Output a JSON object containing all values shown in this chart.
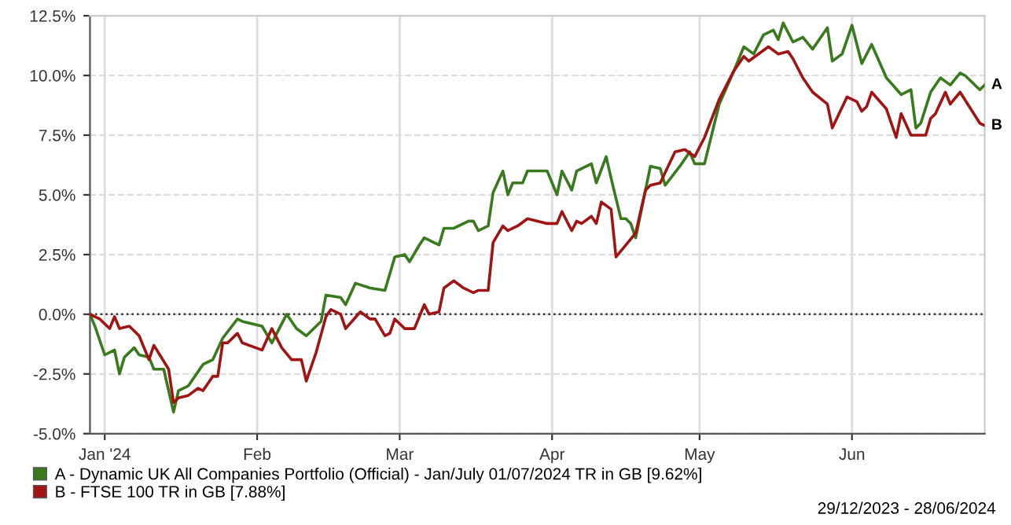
{
  "chart_data": {
    "type": "line",
    "xlim": [
      "2023-12-29",
      "2024-06-28"
    ],
    "xticks": [
      {
        "value": "2024-01-01",
        "label": "Jan '24"
      },
      {
        "value": "2024-02-01",
        "label": "Feb"
      },
      {
        "value": "2024-03-01",
        "label": "Mar"
      },
      {
        "value": "2024-04-01",
        "label": "Apr"
      },
      {
        "value": "2024-05-01",
        "label": "May"
      },
      {
        "value": "2024-06-01",
        "label": "Jun"
      }
    ],
    "ylim": [
      -5,
      12.5
    ],
    "yticks": [
      {
        "value": -5,
        "label": "-5.0%"
      },
      {
        "value": -2.5,
        "label": "-2.5%"
      },
      {
        "value": 0,
        "label": "0.0%"
      },
      {
        "value": 2.5,
        "label": "2.5%"
      },
      {
        "value": 5,
        "label": "5.0%"
      },
      {
        "value": 7.5,
        "label": "7.5%"
      },
      {
        "value": 10,
        "label": "10.0%"
      },
      {
        "value": 12.5,
        "label": "12.5%"
      }
    ],
    "grid": true,
    "legend": "bottom",
    "marker": "none",
    "line_style": "solid",
    "ref_lines": [
      {
        "axis": "y",
        "value": 0,
        "color": "#333333",
        "line_style": "dotted"
      }
    ],
    "annotations": [
      {
        "text": "A",
        "x": "2024-06-28",
        "y": 9.6
      },
      {
        "text": "B",
        "x": "2024-06-28",
        "y": 7.9
      },
      "29/12/2023 - 28/06/2024"
    ],
    "series": [
      {
        "name": "A - Dynamic UK All Companies Portfolio (Official) - Jan/July 01/07/2024 TR in GB [9.62%]",
        "color": "#3a7a1e",
        "x": [
          "2023-12-29",
          "2023-12-30",
          "2024-01-01",
          "2024-01-03",
          "2024-01-04",
          "2024-01-05",
          "2024-01-07",
          "2024-01-08",
          "2024-01-10",
          "2024-01-11",
          "2024-01-13",
          "2024-01-15",
          "2024-01-16",
          "2024-01-18",
          "2024-01-21",
          "2024-01-23",
          "2024-01-25",
          "2024-01-28",
          "2024-01-29",
          "2024-02-02",
          "2024-02-04",
          "2024-02-07",
          "2024-02-09",
          "2024-02-11",
          "2024-02-14",
          "2024-02-15",
          "2024-02-18",
          "2024-02-19",
          "2024-02-21",
          "2024-02-24",
          "2024-02-27",
          "2024-02-29",
          "2024-03-02",
          "2024-03-03",
          "2024-03-05",
          "2024-03-06",
          "2024-03-09",
          "2024-03-10",
          "2024-03-12",
          "2024-03-15",
          "2024-03-16",
          "2024-03-17",
          "2024-03-19",
          "2024-03-20",
          "2024-03-22",
          "2024-03-23",
          "2024-03-24",
          "2024-03-26",
          "2024-03-27",
          "2024-03-31",
          "2024-04-02",
          "2024-04-03",
          "2024-04-05",
          "2024-04-06",
          "2024-04-09",
          "2024-04-10",
          "2024-04-12",
          "2024-04-13",
          "2024-04-15",
          "2024-04-16",
          "2024-04-17",
          "2024-04-18",
          "2024-04-20",
          "2024-04-21",
          "2024-04-23",
          "2024-04-24",
          "2024-04-27",
          "2024-04-29",
          "2024-04-30",
          "2024-05-02",
          "2024-05-05",
          "2024-05-08",
          "2024-05-10",
          "2024-05-12",
          "2024-05-14",
          "2024-05-16",
          "2024-05-17",
          "2024-05-18",
          "2024-05-20",
          "2024-05-22",
          "2024-05-24",
          "2024-05-27",
          "2024-05-28",
          "2024-05-30",
          "2024-06-01",
          "2024-06-03",
          "2024-06-05",
          "2024-06-08",
          "2024-06-11",
          "2024-06-13",
          "2024-06-14",
          "2024-06-15",
          "2024-06-17",
          "2024-06-19",
          "2024-06-21",
          "2024-06-23",
          "2024-06-24",
          "2024-06-27",
          "2024-06-28"
        ],
        "values": [
          0,
          -0.5,
          -1.7,
          -1.5,
          -2.5,
          -1.8,
          -1.4,
          -1.7,
          -1.8,
          -2.3,
          -2.3,
          -4.1,
          -3.2,
          -3.0,
          -2.1,
          -1.9,
          -1.0,
          -0.2,
          -0.3,
          -0.5,
          -1.2,
          0.0,
          -0.6,
          -0.9,
          -0.3,
          0.8,
          0.7,
          0.4,
          1.3,
          1.1,
          1.0,
          2.4,
          2.5,
          2.2,
          2.9,
          3.2,
          2.9,
          3.6,
          3.6,
          3.9,
          3.9,
          3.5,
          3.7,
          5.1,
          6.0,
          5.0,
          5.5,
          5.5,
          6.0,
          6.0,
          5.0,
          6.0,
          5.2,
          6.0,
          6.3,
          5.5,
          6.6,
          5.7,
          4.0,
          4.0,
          3.8,
          3.2,
          5.2,
          6.2,
          6.1,
          5.4,
          6.2,
          6.8,
          6.3,
          6.3,
          8.8,
          10.2,
          11.2,
          10.9,
          11.7,
          11.9,
          11.5,
          12.2,
          11.4,
          11.6,
          11.1,
          12.0,
          10.6,
          10.9,
          12.1,
          10.5,
          11.3,
          9.9,
          9.2,
          9.4,
          7.8,
          8.0,
          9.3,
          9.9,
          9.6,
          10.1,
          10.0,
          9.4,
          9.6
        ]
      },
      {
        "name": "B - FTSE 100 TR in GB [7.88%]",
        "color": "#a01414",
        "x": [
          "2023-12-29",
          "2023-12-31",
          "2024-01-02",
          "2024-01-03",
          "2024-01-04",
          "2024-01-06",
          "2024-01-08",
          "2024-01-10",
          "2024-01-11",
          "2024-01-14",
          "2024-01-15",
          "2024-01-16",
          "2024-01-18",
          "2024-01-20",
          "2024-01-21",
          "2024-01-23",
          "2024-01-24",
          "2024-01-25",
          "2024-01-26",
          "2024-01-28",
          "2024-01-29",
          "2024-02-02",
          "2024-02-04",
          "2024-02-06",
          "2024-02-08",
          "2024-02-10",
          "2024-02-11",
          "2024-02-13",
          "2024-02-15",
          "2024-02-16",
          "2024-02-18",
          "2024-02-19",
          "2024-02-22",
          "2024-02-24",
          "2024-02-25",
          "2024-02-27",
          "2024-02-28",
          "2024-02-29",
          "2024-03-02",
          "2024-03-04",
          "2024-03-06",
          "2024-03-07",
          "2024-03-09",
          "2024-03-10",
          "2024-03-12",
          "2024-03-14",
          "2024-03-16",
          "2024-03-17",
          "2024-03-19",
          "2024-03-20",
          "2024-03-22",
          "2024-03-23",
          "2024-03-24",
          "2024-03-25",
          "2024-03-27",
          "2024-03-31",
          "2024-04-02",
          "2024-04-03",
          "2024-04-05",
          "2024-04-06",
          "2024-04-07",
          "2024-04-09",
          "2024-04-10",
          "2024-04-11",
          "2024-04-13",
          "2024-04-14",
          "2024-04-18",
          "2024-04-20",
          "2024-04-21",
          "2024-04-23",
          "2024-04-26",
          "2024-04-28",
          "2024-04-30",
          "2024-05-02",
          "2024-05-05",
          "2024-05-08",
          "2024-05-10",
          "2024-05-11",
          "2024-05-15",
          "2024-05-17",
          "2024-05-19",
          "2024-05-20",
          "2024-05-22",
          "2024-05-24",
          "2024-05-27",
          "2024-05-28",
          "2024-05-31",
          "2024-06-02",
          "2024-06-03",
          "2024-06-04",
          "2024-06-05",
          "2024-06-08",
          "2024-06-10",
          "2024-06-11",
          "2024-06-13",
          "2024-06-16",
          "2024-06-17",
          "2024-06-18",
          "2024-06-20",
          "2024-06-21",
          "2024-06-23",
          "2024-06-27",
          "2024-06-28"
        ],
        "values": [
          0,
          -0.2,
          -0.6,
          -0.1,
          -0.6,
          -0.5,
          -0.9,
          -1.9,
          -1.3,
          -2.3,
          -3.7,
          -3.5,
          -3.4,
          -3.1,
          -3.2,
          -2.6,
          -2.6,
          -1.2,
          -1.2,
          -0.8,
          -1.2,
          -1.5,
          -0.6,
          -1.4,
          -1.9,
          -1.9,
          -2.8,
          -1.6,
          -0.1,
          0.2,
          0.0,
          -0.6,
          0.1,
          -0.2,
          -0.2,
          -0.9,
          -0.8,
          -0.2,
          -0.6,
          -0.6,
          0.4,
          0.0,
          0.1,
          1.1,
          1.4,
          1.1,
          0.9,
          1.0,
          1.0,
          3.0,
          3.7,
          3.5,
          3.6,
          3.7,
          4.0,
          3.8,
          3.8,
          4.3,
          3.5,
          3.9,
          3.8,
          4.1,
          3.8,
          4.7,
          4.4,
          2.4,
          3.4,
          5.2,
          5.4,
          5.5,
          6.8,
          6.9,
          6.6,
          7.4,
          9.0,
          10.2,
          10.8,
          10.6,
          11.2,
          10.9,
          11.0,
          10.7,
          9.9,
          9.3,
          8.8,
          7.8,
          9.1,
          8.9,
          8.5,
          8.7,
          9.3,
          8.6,
          7.4,
          8.4,
          7.5,
          7.5,
          8.2,
          8.4,
          9.3,
          8.8,
          9.3,
          8.0,
          7.9
        ]
      }
    ]
  }
}
